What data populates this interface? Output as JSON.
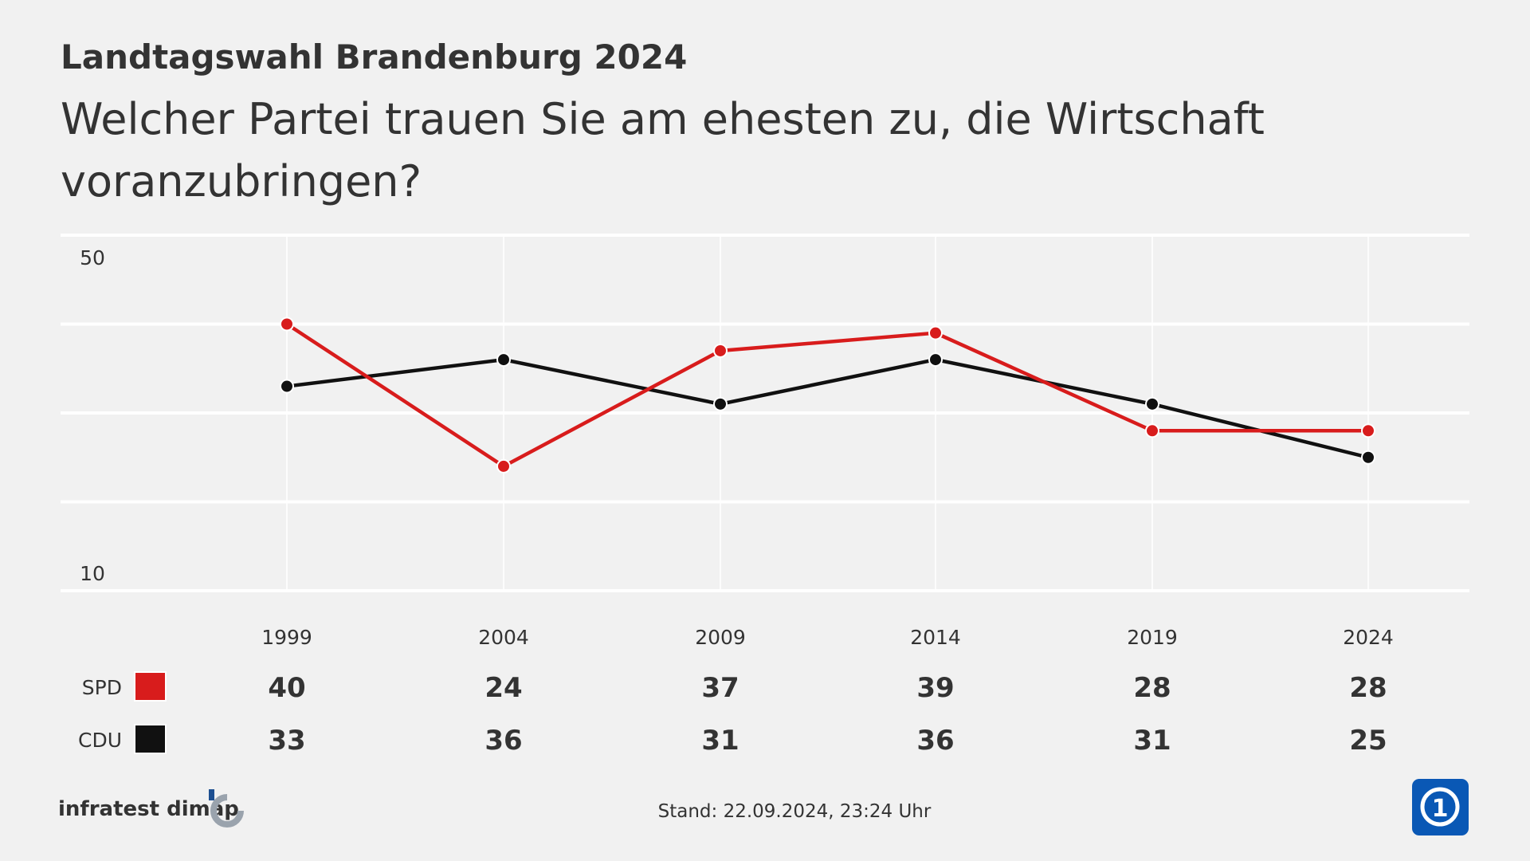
{
  "header": {
    "title": "Landtagswahl Brandenburg 2024",
    "question": [
      "Welcher Partei trauen Sie am ehesten zu, die Wirtschaft",
      "voranzubringen?"
    ]
  },
  "chart_data": {
    "type": "line",
    "x": [
      "1999",
      "2004",
      "2009",
      "2014",
      "2019",
      "2024"
    ],
    "ylim": [
      10,
      50
    ],
    "yticks": [
      "50",
      "10"
    ],
    "grid": true,
    "series": [
      {
        "name": "SPD",
        "color": "#d81c1c",
        "values": [
          40,
          24,
          37,
          39,
          28,
          28
        ]
      },
      {
        "name": "CDU",
        "color": "#111111",
        "values": [
          33,
          36,
          31,
          36,
          31,
          25
        ]
      }
    ]
  },
  "footer": {
    "source": "infratest dimap",
    "stand": "Stand:  22.09.2024, 23:24 Uhr",
    "logo": "ARD Das Erste logo"
  }
}
